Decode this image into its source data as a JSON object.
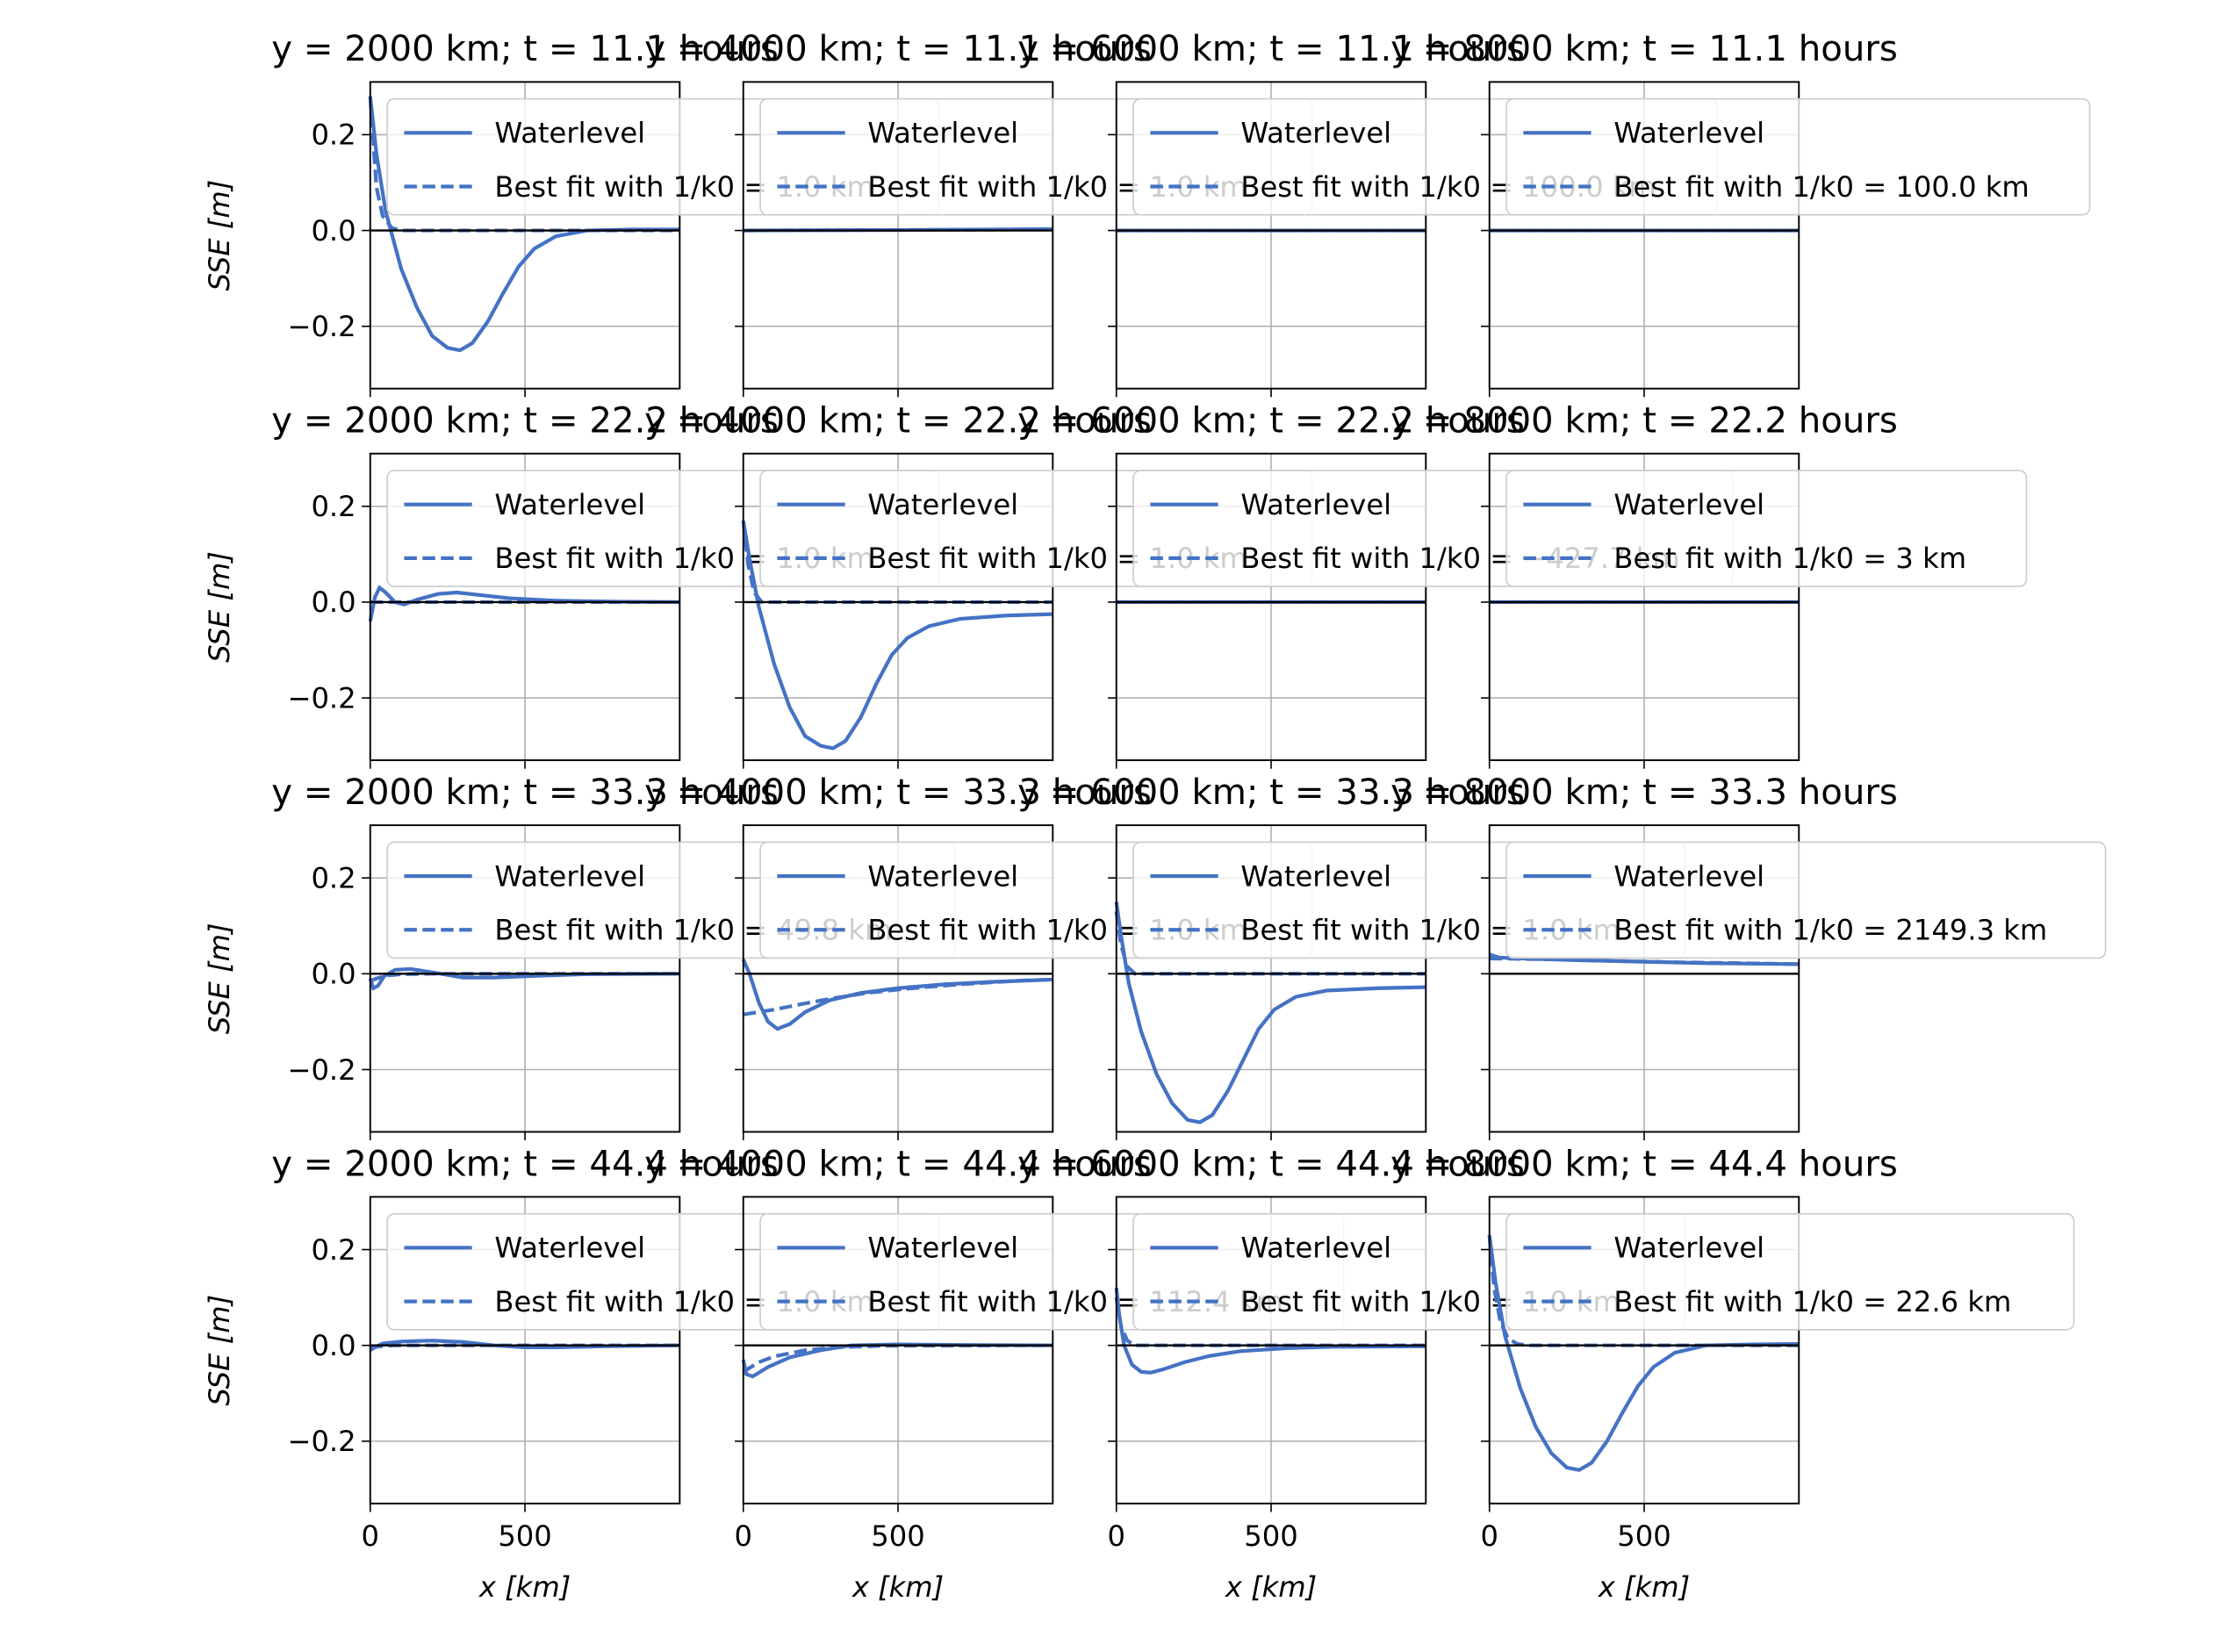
{
  "figure": {
    "ylabel": "SSE [m]",
    "xlabel": "x [km]",
    "ylim": [
      -0.33,
      0.31
    ],
    "xlim": [
      0,
      1000
    ],
    "yticks": [
      -0.2,
      0.0,
      0.2
    ],
    "ytick_labels": [
      "−0.2",
      "0.0",
      "0.2"
    ],
    "xticks": [
      0,
      500
    ],
    "xtick_labels": [
      "0",
      "500"
    ],
    "grid": true,
    "colors": {
      "waterlevel": "#4472C4",
      "fit": "#4472C4",
      "zero_line": "#000000"
    }
  },
  "chart_data": {
    "type": "line",
    "rows": 4,
    "cols": 4,
    "legend_entries": [
      "Waterlevel",
      "Best fit with "
    ],
    "panels": [
      {
        "title": "y = 2000 km; t = 11.1 hours",
        "fit_label": "1/k0 = 1.0 km",
        "waterlevel": [
          [
            0,
            0.28
          ],
          [
            20,
            0.16
          ],
          [
            50,
            0.04
          ],
          [
            100,
            -0.08
          ],
          [
            150,
            -0.16
          ],
          [
            200,
            -0.22
          ],
          [
            250,
            -0.245
          ],
          [
            290,
            -0.25
          ],
          [
            330,
            -0.235
          ],
          [
            380,
            -0.19
          ],
          [
            430,
            -0.13
          ],
          [
            480,
            -0.075
          ],
          [
            530,
            -0.038
          ],
          [
            600,
            -0.012
          ],
          [
            700,
            0.0
          ],
          [
            850,
            0.002
          ],
          [
            1000,
            0.002
          ]
        ],
        "fit": [
          [
            0,
            0.28
          ],
          [
            20,
            0.09
          ],
          [
            40,
            0.03
          ],
          [
            70,
            0.005
          ],
          [
            100,
            0.0
          ],
          [
            1000,
            0.0
          ]
        ]
      },
      {
        "title": "y = 4000 km; t = 11.1 hours",
        "fit_label": "1/k0 = 1.0 km",
        "waterlevel": [
          [
            0,
            0.0
          ],
          [
            500,
            0.001
          ],
          [
            1000,
            0.003
          ]
        ],
        "fit": [
          [
            0,
            0.0
          ],
          [
            1000,
            0.002
          ]
        ]
      },
      {
        "title": "y = 6000 km; t = 11.1 hours",
        "fit_label": "1/k0 = 100.0 km",
        "waterlevel": [
          [
            0,
            0.0
          ],
          [
            1000,
            0.0
          ]
        ],
        "fit": [
          [
            0,
            0.0
          ],
          [
            1000,
            0.0
          ]
        ]
      },
      {
        "title": "y = 8000 km; t = 11.1 hours",
        "fit_label": "1/k0 = 100.0 km",
        "waterlevel": [
          [
            0,
            0.0
          ],
          [
            1000,
            0.0
          ]
        ],
        "fit": [
          [
            0,
            0.0
          ],
          [
            1000,
            0.0
          ]
        ]
      },
      {
        "title": "y = 2000 km; t = 22.2 hours",
        "fit_label": "1/k0 = 1.0 km",
        "waterlevel": [
          [
            0,
            -0.04
          ],
          [
            15,
            0.01
          ],
          [
            30,
            0.03
          ],
          [
            50,
            0.02
          ],
          [
            80,
            0.0
          ],
          [
            110,
            -0.005
          ],
          [
            150,
            0.005
          ],
          [
            220,
            0.017
          ],
          [
            280,
            0.02
          ],
          [
            350,
            0.015
          ],
          [
            450,
            0.008
          ],
          [
            600,
            0.003
          ],
          [
            800,
            0.001
          ],
          [
            1000,
            0.0
          ]
        ],
        "fit": [
          [
            0,
            0.0
          ],
          [
            1000,
            0.0
          ]
        ]
      },
      {
        "title": "y = 4000 km; t = 22.2 hours",
        "fit_label": "1/k0 = 1.0 km",
        "waterlevel": [
          [
            0,
            0.17
          ],
          [
            20,
            0.09
          ],
          [
            50,
            -0.01
          ],
          [
            100,
            -0.13
          ],
          [
            150,
            -0.22
          ],
          [
            200,
            -0.28
          ],
          [
            250,
            -0.3
          ],
          [
            290,
            -0.305
          ],
          [
            330,
            -0.29
          ],
          [
            380,
            -0.24
          ],
          [
            430,
            -0.17
          ],
          [
            480,
            -0.11
          ],
          [
            530,
            -0.075
          ],
          [
            600,
            -0.05
          ],
          [
            700,
            -0.035
          ],
          [
            850,
            -0.028
          ],
          [
            1000,
            -0.025
          ]
        ],
        "fit": [
          [
            0,
            0.17
          ],
          [
            15,
            0.08
          ],
          [
            35,
            0.02
          ],
          [
            60,
            0.0
          ],
          [
            1000,
            0.0
          ]
        ]
      },
      {
        "title": "y = 6000 km; t = 22.2 hours",
        "fit_label": "1/k0 = −427.7 km",
        "waterlevel": [
          [
            0,
            0.0
          ],
          [
            1000,
            0.0
          ]
        ],
        "fit": [
          [
            0,
            0.0
          ],
          [
            1000,
            0.0
          ]
        ]
      },
      {
        "title": "y = 8000 km; t = 22.2 hours",
        "fit_label": "1/k0 = 3 km",
        "waterlevel": [
          [
            0,
            0.0
          ],
          [
            1000,
            0.0
          ]
        ],
        "fit": [
          [
            0,
            0.0
          ],
          [
            1000,
            0.0
          ]
        ]
      },
      {
        "title": "y = 2000 km; t = 33.3 hours",
        "fit_label": "1/k0 = 49.8 km",
        "waterlevel": [
          [
            0,
            -0.01
          ],
          [
            10,
            -0.03
          ],
          [
            25,
            -0.025
          ],
          [
            45,
            -0.005
          ],
          [
            80,
            0.008
          ],
          [
            130,
            0.01
          ],
          [
            200,
            0.003
          ],
          [
            300,
            -0.008
          ],
          [
            400,
            -0.008
          ],
          [
            550,
            -0.004
          ],
          [
            700,
            -0.001
          ],
          [
            1000,
            0.0
          ]
        ],
        "fit": [
          [
            0,
            -0.015
          ],
          [
            20,
            -0.01
          ],
          [
            50,
            -0.004
          ],
          [
            100,
            -0.001
          ],
          [
            200,
            0.0
          ],
          [
            1000,
            0.0
          ]
        ]
      },
      {
        "title": "y = 4000 km; t = 33.3 hours",
        "fit_label": "1/k0 = 1.0 km",
        "waterlevel": [
          [
            0,
            0.03
          ],
          [
            20,
            0.0
          ],
          [
            50,
            -0.06
          ],
          [
            80,
            -0.1
          ],
          [
            110,
            -0.115
          ],
          [
            150,
            -0.105
          ],
          [
            200,
            -0.08
          ],
          [
            280,
            -0.055
          ],
          [
            380,
            -0.04
          ],
          [
            500,
            -0.03
          ],
          [
            650,
            -0.022
          ],
          [
            800,
            -0.017
          ],
          [
            1000,
            -0.012
          ]
        ],
        "fit": [
          [
            0,
            -0.085
          ],
          [
            100,
            -0.075
          ],
          [
            200,
            -0.062
          ],
          [
            300,
            -0.05
          ],
          [
            400,
            -0.04
          ],
          [
            500,
            -0.033
          ],
          [
            600,
            -0.027
          ],
          [
            700,
            -0.022
          ],
          [
            800,
            -0.018
          ],
          [
            900,
            -0.014
          ],
          [
            1000,
            -0.012
          ]
        ]
      },
      {
        "title": "y = 6000 km; t = 33.3 hours",
        "fit_label": "1/k0 = 1.0 km",
        "waterlevel": [
          [
            0,
            0.15
          ],
          [
            15,
            0.08
          ],
          [
            40,
            -0.02
          ],
          [
            80,
            -0.12
          ],
          [
            130,
            -0.21
          ],
          [
            180,
            -0.27
          ],
          [
            230,
            -0.305
          ],
          [
            270,
            -0.31
          ],
          [
            310,
            -0.295
          ],
          [
            360,
            -0.245
          ],
          [
            410,
            -0.18
          ],
          [
            460,
            -0.115
          ],
          [
            510,
            -0.075
          ],
          [
            580,
            -0.048
          ],
          [
            680,
            -0.035
          ],
          [
            850,
            -0.03
          ],
          [
            1000,
            -0.028
          ]
        ],
        "fit": [
          [
            0,
            0.13
          ],
          [
            15,
            0.06
          ],
          [
            35,
            0.015
          ],
          [
            60,
            0.0
          ],
          [
            1000,
            0.0
          ]
        ]
      },
      {
        "title": "y = 8000 km; t = 33.3 hours",
        "fit_label": "1/k0 = 2149.3 km",
        "waterlevel": [
          [
            0,
            0.04
          ],
          [
            30,
            0.034
          ],
          [
            100,
            0.032
          ],
          [
            300,
            0.028
          ],
          [
            500,
            0.025
          ],
          [
            700,
            0.022
          ],
          [
            1000,
            0.02
          ]
        ],
        "fit": [
          [
            0,
            0.032
          ],
          [
            200,
            0.03
          ],
          [
            400,
            0.027
          ],
          [
            600,
            0.024
          ],
          [
            800,
            0.022
          ],
          [
            1000,
            0.02
          ]
        ]
      },
      {
        "title": "y = 2000 km; t = 44.4 hours",
        "fit_label": "1/k0 = 1.0 km",
        "waterlevel": [
          [
            0,
            -0.01
          ],
          [
            15,
            -0.004
          ],
          [
            40,
            0.004
          ],
          [
            100,
            0.008
          ],
          [
            200,
            0.01
          ],
          [
            300,
            0.007
          ],
          [
            400,
            0.0
          ],
          [
            500,
            -0.004
          ],
          [
            600,
            -0.004
          ],
          [
            750,
            -0.002
          ],
          [
            1000,
            0.0
          ]
        ],
        "fit": [
          [
            0,
            -0.005
          ],
          [
            30,
            -0.002
          ],
          [
            80,
            0.0
          ],
          [
            1000,
            0.0
          ]
        ]
      },
      {
        "title": "y = 4000 km; t = 44.4 hours",
        "fit_label": "1/k0 = 112.4 km",
        "waterlevel": [
          [
            0,
            -0.03
          ],
          [
            10,
            -0.06
          ],
          [
            30,
            -0.065
          ],
          [
            80,
            -0.045
          ],
          [
            150,
            -0.025
          ],
          [
            250,
            -0.01
          ],
          [
            350,
            0.0
          ],
          [
            500,
            0.002
          ],
          [
            700,
            0.001
          ],
          [
            1000,
            0.0
          ]
        ],
        "fit": [
          [
            0,
            -0.055
          ],
          [
            50,
            -0.035
          ],
          [
            100,
            -0.023
          ],
          [
            200,
            -0.01
          ],
          [
            300,
            -0.004
          ],
          [
            450,
            -0.001
          ],
          [
            1000,
            0.0
          ]
        ]
      },
      {
        "title": "y = 6000 km; t = 44.4 hours",
        "fit_label": "1/k0 = 1.0 km",
        "waterlevel": [
          [
            0,
            0.12
          ],
          [
            10,
            0.06
          ],
          [
            25,
            0.0
          ],
          [
            50,
            -0.04
          ],
          [
            80,
            -0.055
          ],
          [
            110,
            -0.057
          ],
          [
            150,
            -0.05
          ],
          [
            220,
            -0.035
          ],
          [
            300,
            -0.022
          ],
          [
            400,
            -0.012
          ],
          [
            550,
            -0.006
          ],
          [
            700,
            -0.003
          ],
          [
            1000,
            -0.002
          ]
        ],
        "fit": [
          [
            0,
            0.1
          ],
          [
            15,
            0.04
          ],
          [
            35,
            0.01
          ],
          [
            60,
            0.0
          ],
          [
            1000,
            0.0
          ]
        ]
      },
      {
        "title": "y = 8000 km; t = 44.4 hours",
        "fit_label": "1/k0 = 22.6 km",
        "waterlevel": [
          [
            0,
            0.23
          ],
          [
            20,
            0.13
          ],
          [
            50,
            0.02
          ],
          [
            100,
            -0.09
          ],
          [
            150,
            -0.17
          ],
          [
            200,
            -0.225
          ],
          [
            250,
            -0.255
          ],
          [
            290,
            -0.26
          ],
          [
            330,
            -0.245
          ],
          [
            380,
            -0.2
          ],
          [
            430,
            -0.14
          ],
          [
            480,
            -0.085
          ],
          [
            530,
            -0.045
          ],
          [
            600,
            -0.015
          ],
          [
            700,
            0.0
          ],
          [
            850,
            0.002
          ],
          [
            1000,
            0.003
          ]
        ],
        "fit": [
          [
            0,
            0.23
          ],
          [
            15,
            0.12
          ],
          [
            35,
            0.05
          ],
          [
            60,
            0.015
          ],
          [
            90,
            0.003
          ],
          [
            130,
            0.0
          ],
          [
            1000,
            0.0
          ]
        ]
      }
    ]
  }
}
